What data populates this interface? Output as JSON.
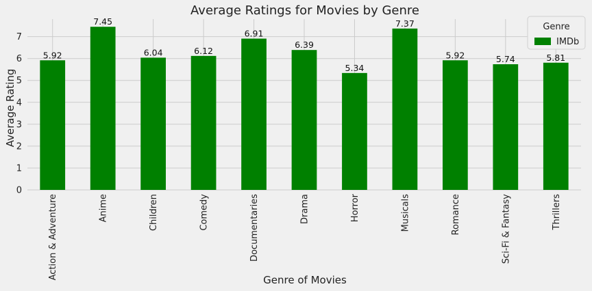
{
  "chart_data": {
    "type": "bar",
    "title": "Average Ratings for Movies by Genre",
    "xlabel": "Genre of Movies",
    "ylabel": "Average Rating",
    "categories": [
      "Action & Adventure",
      "Anime",
      "Children",
      "Comedy",
      "Documentaries",
      "Drama",
      "Horror",
      "Musicals",
      "Romance",
      "Sci-Fi & Fantasy",
      "Thrillers"
    ],
    "series": [
      {
        "name": "IMDb",
        "values": [
          5.92,
          7.45,
          6.04,
          6.12,
          6.91,
          6.39,
          5.34,
          7.37,
          5.92,
          5.74,
          5.81
        ]
      }
    ],
    "data_labels": [
      "5.92",
      "7.45",
      "6.04",
      "6.12",
      "6.91",
      "6.39",
      "5.34",
      "7.37",
      "5.92",
      "5.74",
      "5.81"
    ],
    "yticks": [
      0,
      1,
      2,
      3,
      4,
      5,
      6,
      7
    ],
    "ylim": [
      0,
      7.8
    ],
    "grid": true,
    "legend": {
      "title": "Genre",
      "entries": [
        "IMDb"
      ],
      "placement": "top-right"
    },
    "colors": {
      "bar": "#008000",
      "background": "#f0f0f0",
      "grid": "#cbcbcb"
    }
  }
}
